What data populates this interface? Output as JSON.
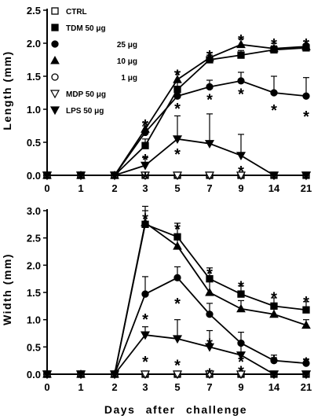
{
  "chart_data": [
    {
      "type": "line",
      "ylabel": "Length (mm)",
      "xlabel": "",
      "categories": [
        "0",
        "1",
        "2",
        "3",
        "5",
        "7",
        "9",
        "14",
        "21"
      ],
      "ylim": [
        0,
        2.5
      ],
      "yticks": [
        "0.0",
        "0.5",
        "1.0",
        "1.5",
        "2.0",
        "2.5"
      ],
      "legend_position": "top-left",
      "series": [
        {
          "name": "CTRL",
          "marker": "square-open",
          "values": [
            0,
            0,
            0,
            0,
            0,
            0,
            0,
            0,
            0
          ],
          "err": [
            0,
            0,
            0,
            0,
            0,
            0,
            0,
            0,
            0
          ]
        },
        {
          "name": "TDM 50 μg",
          "marker": "square",
          "values": [
            0,
            0,
            0,
            0.45,
            1.3,
            1.75,
            1.82,
            1.9,
            1.93
          ],
          "err": [
            0,
            0,
            0,
            0.1,
            0.12,
            0.07,
            0.07,
            0.06,
            0.06
          ]
        },
        {
          "name": "25 μg",
          "marker": "circle",
          "values": [
            0,
            0,
            0,
            0.65,
            1.2,
            1.34,
            1.43,
            1.25,
            1.2
          ],
          "err": [
            0,
            0,
            0,
            0.1,
            0.15,
            0.1,
            0.13,
            0.25,
            0.28
          ]
        },
        {
          "name": "10 μg",
          "marker": "triangle-up",
          "values": [
            0,
            0,
            0,
            0.7,
            1.45,
            1.78,
            1.98,
            1.92,
            1.95
          ],
          "err": [
            0,
            0,
            0,
            0.1,
            0.12,
            0.08,
            0.09,
            0.08,
            0.08
          ]
        },
        {
          "name": "1 μg",
          "marker": "circle-open",
          "values": [
            0,
            0,
            0,
            0,
            0,
            0,
            0,
            0,
            0
          ],
          "err": [
            0,
            0,
            0,
            0,
            0,
            0,
            0,
            0,
            0
          ]
        },
        {
          "name": "MDP 50 μg",
          "marker": "triangle-down-open",
          "values": [
            0,
            0,
            0,
            0,
            0,
            0,
            0,
            0,
            0
          ],
          "err": [
            0,
            0,
            0,
            0,
            0,
            0,
            0,
            0,
            0
          ]
        },
        {
          "name": "LPS 50 μg",
          "marker": "triangle-down",
          "values": [
            0,
            0,
            0,
            0.15,
            0.55,
            0.48,
            0.3,
            0,
            0
          ],
          "err": [
            0,
            0,
            0,
            0.12,
            0.35,
            0.45,
            0.32,
            0,
            0
          ]
        }
      ],
      "annotations": {
        "symbol": "*",
        "marks": [
          {
            "x": "3",
            "y": 0.82
          },
          {
            "x": "3",
            "y": 0.3
          },
          {
            "x": "3",
            "y": 0.02
          },
          {
            "x": "5",
            "y": 1.58
          },
          {
            "x": "5",
            "y": 1.07
          },
          {
            "x": "5",
            "y": 0.38
          },
          {
            "x": "7",
            "y": 1.87
          },
          {
            "x": "7",
            "y": 1.21
          },
          {
            "x": "9",
            "y": 2.11
          },
          {
            "x": "9",
            "y": 1.29
          },
          {
            "x": "9",
            "y": 0.12
          },
          {
            "x": "14",
            "y": 2.05
          },
          {
            "x": "14",
            "y": 1.05
          },
          {
            "x": "21",
            "y": 2.05
          },
          {
            "x": "21",
            "y": 0.95
          }
        ]
      }
    },
    {
      "type": "line",
      "ylabel": "Width (mm)",
      "xlabel": "Days after challenge",
      "categories": [
        "0",
        "1",
        "2",
        "3",
        "5",
        "7",
        "9",
        "14",
        "21"
      ],
      "ylim": [
        0,
        3.0
      ],
      "yticks": [
        "0.0",
        "0.5",
        "1.0",
        "1.5",
        "2.0",
        "2.5",
        "3.0"
      ],
      "series": [
        {
          "name": "CTRL",
          "marker": "square-open",
          "values": [
            0,
            0,
            0,
            0,
            0,
            0,
            0,
            0,
            0
          ],
          "err": [
            0,
            0,
            0,
            0,
            0,
            0,
            0,
            0,
            0
          ]
        },
        {
          "name": "TDM 50 μg",
          "marker": "square",
          "values": [
            0,
            0,
            0,
            2.75,
            2.52,
            1.75,
            1.47,
            1.25,
            1.18
          ],
          "err": [
            0,
            0,
            0,
            0.25,
            0.25,
            0.2,
            0.15,
            0.15,
            0.15
          ]
        },
        {
          "name": "25 μg",
          "marker": "circle",
          "values": [
            0,
            0,
            0,
            1.47,
            1.77,
            1.1,
            0.57,
            0.25,
            0.2
          ],
          "err": [
            0,
            0,
            0,
            0.32,
            0.2,
            0.2,
            0.2,
            0.1,
            0.08
          ]
        },
        {
          "name": "10 μg",
          "marker": "triangle-up",
          "values": [
            0,
            0,
            0,
            2.78,
            2.35,
            1.5,
            1.2,
            1.1,
            0.9
          ],
          "err": [
            0,
            0,
            0,
            0.3,
            0.2,
            0.2,
            0.15,
            0.1,
            0.1
          ]
        },
        {
          "name": "1 μg",
          "marker": "circle-open",
          "values": [
            0,
            0,
            0,
            0,
            0,
            0,
            0,
            0,
            0
          ],
          "err": [
            0,
            0,
            0,
            0,
            0,
            0,
            0,
            0,
            0
          ]
        },
        {
          "name": "MDP 50 μg",
          "marker": "triangle-down-open",
          "values": [
            0,
            0,
            0,
            0,
            0,
            0,
            0,
            0,
            0
          ],
          "err": [
            0,
            0,
            0,
            0,
            0,
            0,
            0,
            0,
            0
          ]
        },
        {
          "name": "LPS 50 μg",
          "marker": "triangle-down",
          "values": [
            0,
            0,
            0,
            0.72,
            0.65,
            0.5,
            0.35,
            0,
            0
          ],
          "err": [
            0,
            0,
            0,
            0.15,
            0.35,
            0.3,
            0.25,
            0,
            0
          ]
        }
      ],
      "annotations": {
        "symbol": "*",
        "marks": [
          {
            "x": "3",
            "y": 2.92
          },
          {
            "x": "3",
            "y": 1.08
          },
          {
            "x": "3",
            "y": 0.3
          },
          {
            "x": "5",
            "y": 2.73
          },
          {
            "x": "5",
            "y": 1.37
          },
          {
            "x": "5",
            "y": 0.24
          },
          {
            "x": "7",
            "y": 1.92
          },
          {
            "x": "7",
            "y": 0.63
          },
          {
            "x": "7",
            "y": 0.08
          },
          {
            "x": "9",
            "y": 1.68
          },
          {
            "x": "9",
            "y": 0.12
          },
          {
            "x": "9",
            "y": 0.3
          },
          {
            "x": "14",
            "y": 1.48
          },
          {
            "x": "14",
            "y": 0.32
          },
          {
            "x": "21",
            "y": 1.4
          },
          {
            "x": "21",
            "y": 0.28
          }
        ]
      }
    }
  ]
}
